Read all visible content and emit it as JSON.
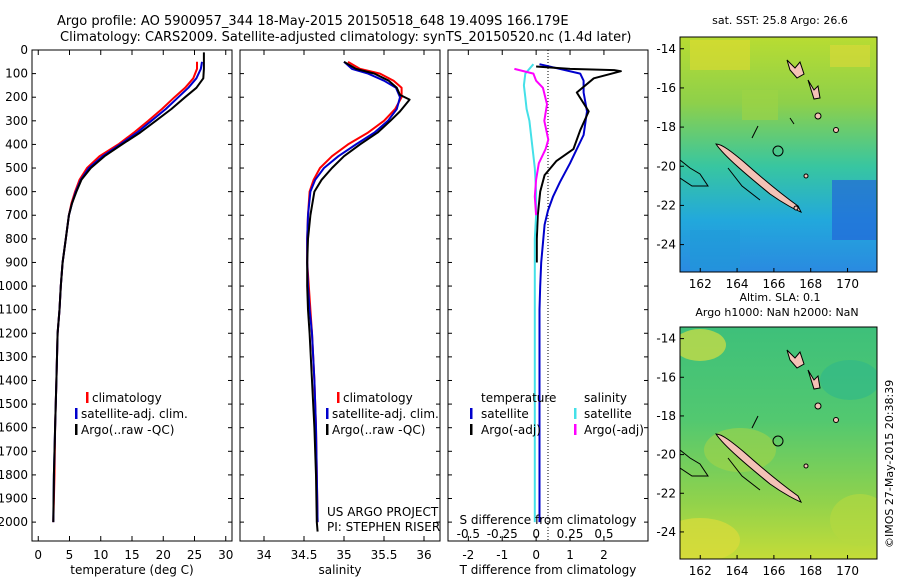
{
  "header": {
    "line1": "Argo profile: AO 5900957_344 18-May-2015 20150518_648 19.409S 166.179E",
    "line2": "Climatology: CARS2009. Satellite-adjusted climatology: synTS_20150520.nc (1.4d later)"
  },
  "stamp": "©IMOS 27-May-2015 20:38:39",
  "project": {
    "line1": "US ARGO PROJECT",
    "line2": "PI: STEPHEN RISER"
  },
  "colors": {
    "climatology": "#ff0000",
    "satellite": "#0000cc",
    "argo": "#000000",
    "s_satellite": "#44e0e8",
    "s_argo": "#ff00ff"
  },
  "chart_data": [
    {
      "type": "line",
      "xlabel": "temperature (deg C)",
      "xlim": [
        -1,
        31
      ],
      "ylim": [
        2080,
        0
      ],
      "xticks": [
        "0",
        "5",
        "10",
        "15",
        "20",
        "25",
        "30"
      ],
      "yticks": [
        "0",
        "100",
        "200",
        "300",
        "400",
        "500",
        "600",
        "700",
        "800",
        "900",
        "1000",
        "1100",
        "1200",
        "1300",
        "1400",
        "1500",
        "1600",
        "1700",
        "1800",
        "1900",
        "2000"
      ],
      "legend": [
        "climatology",
        "satellite-adj. clim.",
        "Argo(..raw -QC)"
      ],
      "series": [
        {
          "name": "climatology",
          "color": "#ff0000",
          "x": [
            25.4,
            25.4,
            24.8,
            23.5,
            21.8,
            19.8,
            17.6,
            15.3,
            12.8,
            9.8,
            7.8,
            6.6,
            5.9,
            5.3,
            4.9,
            4.4,
            3.9,
            3.6,
            3.4,
            3.1,
            2.9,
            2.7,
            2.6,
            2.4
          ],
          "y": [
            50,
            80,
            120,
            160,
            200,
            250,
            300,
            350,
            400,
            450,
            500,
            550,
            600,
            650,
            700,
            800,
            900,
            1000,
            1100,
            1200,
            1400,
            1600,
            1800,
            2000
          ]
        },
        {
          "name": "satellite-adj. clim.",
          "color": "#0000cc",
          "x": [
            26.2,
            26.0,
            25.3,
            24.0,
            22.4,
            20.4,
            18.1,
            15.8,
            13.1,
            10.3,
            8.1,
            6.8,
            6.0,
            5.4,
            4.9,
            4.4,
            3.9,
            3.6,
            3.4,
            3.1,
            2.9,
            2.7,
            2.5,
            2.4
          ],
          "y": [
            50,
            80,
            120,
            160,
            200,
            250,
            300,
            350,
            400,
            450,
            500,
            550,
            600,
            650,
            700,
            800,
            900,
            1000,
            1100,
            1200,
            1400,
            1600,
            1800,
            2000
          ]
        },
        {
          "name": "Argo(..raw -QC)",
          "color": "#000000",
          "x": [
            26.5,
            26.5,
            26.4,
            25.3,
            23.5,
            21.3,
            18.8,
            16.3,
            13.4,
            10.6,
            8.4,
            6.9,
            6.1,
            5.4,
            4.9,
            4.4,
            3.9,
            3.6,
            3.4,
            3.1,
            2.9,
            2.7,
            2.5,
            2.4
          ],
          "y": [
            10,
            80,
            120,
            160,
            200,
            250,
            300,
            350,
            400,
            450,
            500,
            550,
            600,
            650,
            700,
            800,
            900,
            1000,
            1100,
            1200,
            1400,
            1600,
            1800,
            2000
          ]
        }
      ]
    },
    {
      "type": "line",
      "xlabel": "salinity",
      "xlim": [
        33.7,
        36.2
      ],
      "ylim": [
        2080,
        0
      ],
      "xticks": [
        "34",
        "34.5",
        "35",
        "35.5",
        "36"
      ],
      "legend": [
        "climatology",
        "satellite-adj. clim.",
        "Argo(..raw -QC)"
      ],
      "series": [
        {
          "name": "climatology",
          "color": "#ff0000",
          "x": [
            35.05,
            35.2,
            35.45,
            35.62,
            35.72,
            35.72,
            35.64,
            35.5,
            35.3,
            35.05,
            34.85,
            34.7,
            34.62,
            34.57,
            34.55,
            34.54,
            34.54,
            34.56,
            34.58,
            34.6,
            34.63,
            34.65,
            34.66,
            34.67
          ],
          "y": [
            50,
            80,
            100,
            130,
            160,
            200,
            250,
            300,
            350,
            400,
            450,
            500,
            550,
            600,
            700,
            800,
            900,
            1000,
            1100,
            1200,
            1400,
            1600,
            1800,
            2000
          ]
        },
        {
          "name": "satellite-adj. clim.",
          "color": "#0000cc",
          "x": [
            35.0,
            35.1,
            35.3,
            35.5,
            35.65,
            35.7,
            35.66,
            35.55,
            35.38,
            35.15,
            34.93,
            34.75,
            34.64,
            34.58,
            34.55,
            34.54,
            34.54,
            34.55,
            34.57,
            34.6,
            34.63,
            34.65,
            34.66,
            34.67
          ],
          "y": [
            50,
            80,
            100,
            130,
            160,
            200,
            250,
            300,
            350,
            400,
            450,
            500,
            550,
            600,
            700,
            800,
            900,
            1000,
            1100,
            1200,
            1400,
            1600,
            1800,
            2000
          ]
        },
        {
          "name": "Argo(..raw -QC)",
          "color": "#000000",
          "x": [
            35.0,
            35.15,
            35.38,
            35.56,
            35.66,
            35.7,
            35.82,
            35.7,
            35.58,
            35.42,
            35.2,
            35.0,
            34.85,
            34.72,
            34.63,
            34.58,
            34.55,
            34.54,
            34.54,
            34.55,
            34.57,
            34.6,
            34.63,
            34.65,
            34.66,
            34.67
          ],
          "y": [
            50,
            80,
            100,
            130,
            160,
            190,
            210,
            260,
            300,
            350,
            400,
            450,
            500,
            550,
            600,
            700,
            800,
            900,
            1000,
            1100,
            1200,
            1400,
            1600,
            1800,
            2000,
            2040
          ]
        }
      ]
    },
    {
      "type": "line",
      "xlabel": "T difference from climatology",
      "xlabel_top": "S difference from climatology",
      "xlim": [
        -2.6,
        3.3
      ],
      "ylim": [
        2080,
        0
      ],
      "xticks": [
        "-2",
        "-1",
        "0",
        "1",
        "2"
      ],
      "xticks_top": [
        "-0.5",
        "-0.25",
        "0",
        "0.25",
        "0.5"
      ],
      "legend_headers": [
        "temperature",
        "salinity"
      ],
      "legend": [
        "satellite",
        "Argo(-adj)",
        "satellite",
        "Argo(-adj)"
      ],
      "series": [
        {
          "name": "satellite",
          "quantity": "temperature",
          "color": "#0000cc",
          "x": [
            0.1,
            1.3,
            1.4,
            1.4,
            1.5,
            1.4,
            1.2,
            1.0,
            0.85,
            0.7,
            0.5,
            0.35,
            0.25,
            0.2,
            0.15,
            0.12,
            0.1,
            0.1,
            0.1,
            0.1,
            0.1,
            0.1,
            0.1
          ],
          "y": [
            60,
            100,
            130,
            180,
            260,
            360,
            420,
            480,
            520,
            560,
            620,
            680,
            740,
            820,
            900,
            1000,
            1100,
            1200,
            1400,
            1600,
            1800,
            1900,
            2000
          ]
        },
        {
          "name": "Argo(-adj)",
          "quantity": "temperature",
          "color": "#000000",
          "x": [
            0.0,
            1.0,
            2.3,
            2.5,
            1.7,
            1.2,
            1.55,
            1.3,
            1.1,
            0.6,
            0.25,
            0.12,
            0.05,
            0.02,
            0.02
          ],
          "y": [
            70,
            80,
            85,
            90,
            120,
            180,
            260,
            340,
            420,
            470,
            530,
            600,
            700,
            800,
            900
          ]
        },
        {
          "name": "satellite",
          "quantity": "salinity",
          "color": "#44e0e8",
          "x": [
            -0.02,
            -0.08,
            -0.09,
            -0.08,
            -0.07,
            -0.05,
            -0.03,
            -0.01,
            0.0,
            0.0,
            -0.01,
            -0.01,
            -0.01,
            -0.01,
            -0.01,
            -0.01
          ],
          "y": [
            60,
            100,
            150,
            200,
            250,
            300,
            400,
            500,
            600,
            700,
            800,
            1000,
            1200,
            1400,
            1600,
            2000
          ]
        },
        {
          "name": "Argo(-adj)",
          "quantity": "salinity",
          "color": "#ff00ff",
          "x": [
            -0.16,
            -0.02,
            0.0,
            0.05,
            0.08,
            0.06,
            0.09,
            0.07,
            0.02,
            0.0,
            -0.01,
            0.0
          ],
          "y": [
            80,
            100,
            130,
            160,
            230,
            300,
            380,
            420,
            480,
            550,
            620,
            700
          ]
        }
      ]
    },
    {
      "type": "heatmap",
      "title": "sat. SST: 25.8 Argo: 26.6",
      "xticks": [
        "162",
        "164",
        "166",
        "168",
        "170"
      ],
      "yticks": [
        "-14",
        "-16",
        "-18",
        "-20",
        "-22",
        "-24"
      ]
    },
    {
      "type": "heatmap",
      "title": "Altim. SLA: 0.1",
      "subtitle": "Argo h1000: NaN h2000: NaN",
      "xticks": [
        "162",
        "164",
        "166",
        "168",
        "170"
      ],
      "yticks": [
        "-14",
        "-16",
        "-18",
        "-20",
        "-22",
        "-24"
      ]
    }
  ]
}
